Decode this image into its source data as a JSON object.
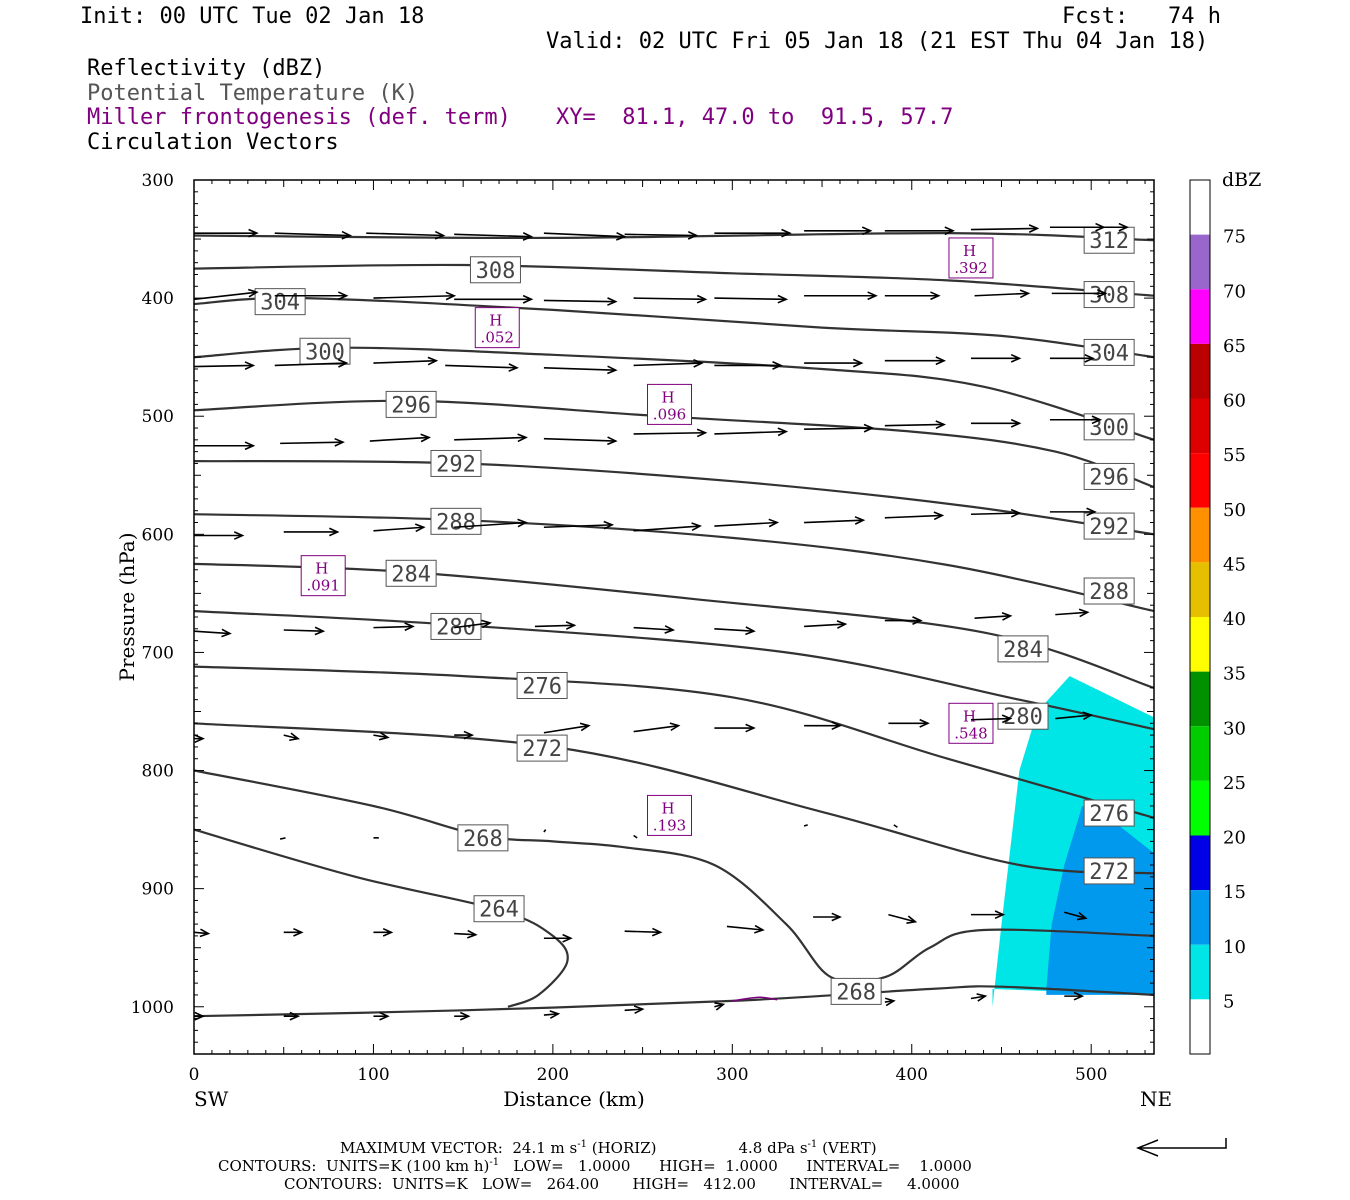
{
  "header": {
    "init": "Init: 00 UTC Tue 02 Jan 18",
    "fcst": "Fcst:   74 h",
    "valid": "Valid: 02 UTC Fri 05 Jan 18 (21 EST Thu 04 Jan 18)",
    "field1": "Reflectivity (dBZ)",
    "field2": "Potential Temperature (K)",
    "field3": "Miller frontogenesis (def. term)",
    "xy": "XY=  81.1, 47.0 to  91.5, 57.7",
    "field4": "Circulation Vectors"
  },
  "colors": {
    "theta": "#333333",
    "fronto": "#800080",
    "refl_5": "#00e6e6",
    "refl_10": "#0099ee"
  },
  "chart_data": {
    "type": "cross-section",
    "xlabel": "Distance (km)",
    "ylabel": "Pressure (hPa)",
    "xlim": [
      0,
      535
    ],
    "ylim": [
      1040,
      300
    ],
    "xticks": [
      0,
      100,
      200,
      300,
      400,
      500
    ],
    "yticks": [
      300,
      400,
      500,
      600,
      700,
      800,
      900,
      1000
    ],
    "x_end_labels": {
      "left": "SW",
      "right": "NE"
    },
    "theta_contours": [
      {
        "label": "312",
        "points": [
          [
            0,
            347
          ],
          [
            200,
            349
          ],
          [
            420,
            345
          ],
          [
            535,
            351
          ]
        ],
        "labels_at": [
          [
            510,
            351
          ]
        ]
      },
      {
        "label": "308",
        "points": [
          [
            0,
            375
          ],
          [
            150,
            372
          ],
          [
            300,
            379
          ],
          [
            420,
            385
          ],
          [
            535,
            398
          ]
        ],
        "labels_at": [
          [
            168,
            376
          ],
          [
            510,
            397
          ]
        ]
      },
      {
        "label": "304",
        "points": [
          [
            0,
            405
          ],
          [
            60,
            400
          ],
          [
            200,
            410
          ],
          [
            350,
            425
          ],
          [
            450,
            432
          ],
          [
            535,
            450
          ]
        ],
        "labels_at": [
          [
            48,
            403
          ],
          [
            510,
            446
          ]
        ]
      },
      {
        "label": "300",
        "points": [
          [
            0,
            450
          ],
          [
            80,
            442
          ],
          [
            200,
            448
          ],
          [
            350,
            460
          ],
          [
            440,
            475
          ],
          [
            535,
            520
          ]
        ],
        "labels_at": [
          [
            73,
            445
          ],
          [
            510,
            509
          ]
        ]
      },
      {
        "label": "296",
        "points": [
          [
            0,
            495
          ],
          [
            120,
            487
          ],
          [
            260,
            500
          ],
          [
            400,
            513
          ],
          [
            480,
            530
          ],
          [
            535,
            560
          ]
        ],
        "labels_at": [
          [
            121,
            490
          ],
          [
            510,
            551
          ]
        ]
      },
      {
        "label": "292",
        "points": [
          [
            0,
            538
          ],
          [
            150,
            540
          ],
          [
            300,
            555
          ],
          [
            430,
            576
          ],
          [
            535,
            600
          ]
        ],
        "labels_at": [
          [
            146,
            540
          ],
          [
            510,
            593
          ]
        ]
      },
      {
        "label": "288",
        "points": [
          [
            0,
            583
          ],
          [
            150,
            588
          ],
          [
            300,
            603
          ],
          [
            420,
            626
          ],
          [
            535,
            665
          ]
        ],
        "labels_at": [
          [
            146,
            589
          ],
          [
            510,
            648
          ]
        ]
      },
      {
        "label": "284",
        "points": [
          [
            0,
            625
          ],
          [
            120,
            632
          ],
          [
            280,
            655
          ],
          [
            440,
            683
          ],
          [
            535,
            730
          ]
        ],
        "labels_at": [
          [
            121,
            633
          ],
          [
            462,
            697
          ]
        ]
      },
      {
        "label": "280",
        "points": [
          [
            0,
            665
          ],
          [
            150,
            677
          ],
          [
            330,
            700
          ],
          [
            460,
            740
          ],
          [
            535,
            765
          ]
        ],
        "labels_at": [
          [
            146,
            678
          ],
          [
            462,
            754
          ]
        ]
      },
      {
        "label": "276",
        "points": [
          [
            0,
            712
          ],
          [
            150,
            720
          ],
          [
            300,
            738
          ],
          [
            420,
            790
          ],
          [
            535,
            840
          ]
        ],
        "labels_at": [
          [
            194,
            728
          ],
          [
            510,
            836
          ]
        ]
      },
      {
        "label": "272",
        "points": [
          [
            0,
            760
          ],
          [
            200,
            780
          ],
          [
            350,
            835
          ],
          [
            460,
            880
          ],
          [
            535,
            887
          ]
        ],
        "labels_at": [
          [
            194,
            781
          ],
          [
            510,
            885
          ]
        ]
      },
      {
        "label": "268",
        "points": [
          [
            0,
            800
          ],
          [
            100,
            830
          ],
          [
            160,
            855
          ],
          [
            200,
            860
          ],
          [
            240,
            865
          ],
          [
            290,
            880
          ],
          [
            330,
            930
          ],
          [
            355,
            975
          ],
          [
            385,
            975
          ],
          [
            410,
            950
          ],
          [
            440,
            935
          ],
          [
            535,
            940
          ]
        ],
        "labels_at": [
          [
            161,
            857
          ],
          [
            369,
            987
          ]
        ]
      },
      {
        "label": "264",
        "points": [
          [
            0,
            850
          ],
          [
            90,
            890
          ],
          [
            170,
            918
          ],
          [
            200,
            940
          ],
          [
            208,
            962
          ],
          [
            192,
            990
          ],
          [
            175,
            1000
          ]
        ],
        "labels_at": [
          [
            170,
            917
          ]
        ]
      },
      {
        "label": "",
        "points": [
          [
            0,
            1008
          ],
          [
            150,
            1003
          ],
          [
            300,
            995
          ],
          [
            410,
            985
          ],
          [
            450,
            983
          ],
          [
            535,
            990
          ]
        ],
        "labels_at": []
      }
    ],
    "fronto_maxima": [
      {
        "label": "H",
        "value": ".392",
        "x": 433,
        "p": 366
      },
      {
        "label": "H",
        "value": ".052",
        "x": 169,
        "p": 425
      },
      {
        "label": "H",
        "value": ".096",
        "x": 265,
        "p": 490
      },
      {
        "label": "H",
        "value": ".091",
        "x": 72,
        "p": 635
      },
      {
        "label": "H",
        "value": ".548",
        "x": 433,
        "p": 760
      },
      {
        "label": "H",
        "value": ".193",
        "x": 265,
        "p": 838
      }
    ],
    "reflectivity_regions": [
      {
        "dbz": 5,
        "points": [
          [
            445,
            1000
          ],
          [
            450,
            930
          ],
          [
            460,
            800
          ],
          [
            470,
            750
          ],
          [
            488,
            720
          ],
          [
            535,
            755
          ],
          [
            535,
            990
          ],
          [
            445,
            985
          ]
        ]
      },
      {
        "dbz": 10,
        "points": [
          [
            475,
            985
          ],
          [
            478,
            930
          ],
          [
            485,
            880
          ],
          [
            495,
            830
          ],
          [
            510,
            840
          ],
          [
            535,
            870
          ],
          [
            535,
            990
          ],
          [
            475,
            990
          ]
        ]
      }
    ],
    "colorbar": {
      "title": "dBZ",
      "levels": [
        5,
        10,
        15,
        20,
        25,
        30,
        35,
        40,
        45,
        50,
        55,
        60,
        65,
        70,
        75
      ],
      "colors": [
        "#ffffff",
        "#00e6e6",
        "#0099ee",
        "#0000e6",
        "#00ff00",
        "#00cc00",
        "#009000",
        "#ffff00",
        "#e6c000",
        "#ff9000",
        "#ff0000",
        "#dd0000",
        "#bb0000",
        "#ff00ff",
        "#9966cc",
        "#ffffff"
      ]
    },
    "vectors": [
      [
        0,
        345,
        35,
        345
      ],
      [
        45,
        345,
        42,
        347
      ],
      [
        96,
        345,
        43,
        347
      ],
      [
        145,
        346,
        43,
        348
      ],
      [
        195,
        345,
        45,
        348
      ],
      [
        240,
        346,
        40,
        347
      ],
      [
        290,
        345,
        42,
        345
      ],
      [
        340,
        343,
        37,
        343
      ],
      [
        385,
        343,
        38,
        343
      ],
      [
        433,
        342,
        37,
        341
      ],
      [
        477,
        340,
        30,
        340
      ],
      [
        505,
        340,
        15,
        340
      ],
      [
        0,
        401,
        35,
        395
      ],
      [
        45,
        398,
        40,
        398
      ],
      [
        100,
        400,
        45,
        398
      ],
      [
        145,
        401,
        43,
        401
      ],
      [
        195,
        402,
        40,
        403
      ],
      [
        245,
        400,
        40,
        401
      ],
      [
        290,
        400,
        40,
        401
      ],
      [
        340,
        398,
        40,
        398
      ],
      [
        385,
        398,
        30,
        398
      ],
      [
        435,
        398,
        30,
        396
      ],
      [
        478,
        396,
        30,
        396
      ],
      [
        0,
        458,
        33,
        457
      ],
      [
        45,
        457,
        40,
        455
      ],
      [
        100,
        455,
        35,
        453
      ],
      [
        140,
        457,
        40,
        459
      ],
      [
        195,
        459,
        40,
        461
      ],
      [
        245,
        457,
        38,
        455
      ],
      [
        290,
        457,
        37,
        457
      ],
      [
        340,
        455,
        32,
        455
      ],
      [
        385,
        453,
        33,
        453
      ],
      [
        433,
        451,
        27,
        451
      ],
      [
        477,
        451,
        24,
        451
      ],
      [
        0,
        525,
        33,
        525
      ],
      [
        48,
        523,
        35,
        522
      ],
      [
        98,
        521,
        33,
        518
      ],
      [
        145,
        520,
        40,
        518
      ],
      [
        195,
        519,
        40,
        521
      ],
      [
        245,
        515,
        40,
        514
      ],
      [
        290,
        515,
        40,
        513
      ],
      [
        340,
        511,
        38,
        510
      ],
      [
        385,
        508,
        33,
        507
      ],
      [
        433,
        506,
        27,
        506
      ],
      [
        477,
        503,
        28,
        503
      ],
      [
        0,
        601,
        27,
        601
      ],
      [
        50,
        598,
        30,
        598
      ],
      [
        100,
        597,
        28,
        594
      ],
      [
        145,
        594,
        40,
        590
      ],
      [
        195,
        594,
        38,
        592
      ],
      [
        245,
        597,
        37,
        593
      ],
      [
        290,
        593,
        35,
        590
      ],
      [
        340,
        590,
        33,
        588
      ],
      [
        385,
        586,
        32,
        584
      ],
      [
        433,
        583,
        27,
        582
      ],
      [
        477,
        581,
        25,
        581
      ],
      [
        0,
        682,
        20,
        684
      ],
      [
        50,
        681,
        22,
        682
      ],
      [
        100,
        679,
        22,
        678
      ],
      [
        145,
        679,
        20,
        675
      ],
      [
        190,
        678,
        22,
        677
      ],
      [
        245,
        679,
        22,
        681
      ],
      [
        290,
        680,
        22,
        682
      ],
      [
        340,
        678,
        23,
        676
      ],
      [
        385,
        673,
        20,
        673
      ],
      [
        435,
        671,
        20,
        669
      ],
      [
        480,
        668,
        18,
        666
      ],
      [
        0,
        773,
        5,
        773
      ],
      [
        50,
        770,
        8,
        773
      ],
      [
        100,
        770,
        8,
        772
      ],
      [
        145,
        770,
        10,
        770
      ],
      [
        195,
        768,
        25,
        762
      ],
      [
        245,
        767,
        25,
        762
      ],
      [
        290,
        764,
        22,
        764
      ],
      [
        340,
        762,
        20,
        762
      ],
      [
        387,
        760,
        22,
        760
      ],
      [
        433,
        757,
        22,
        756
      ],
      [
        480,
        756,
        20,
        753
      ],
      [
        48,
        858,
        3,
        857
      ],
      [
        100,
        857,
        3,
        857
      ],
      [
        195,
        852,
        1,
        850
      ],
      [
        245,
        855,
        2,
        857
      ],
      [
        340,
        847,
        2,
        846
      ],
      [
        390,
        846,
        2,
        848
      ],
      [
        0,
        937,
        8,
        938
      ],
      [
        50,
        937,
        10,
        937
      ],
      [
        100,
        937,
        10,
        937
      ],
      [
        145,
        938,
        12,
        939
      ],
      [
        195,
        942,
        15,
        942
      ],
      [
        240,
        936,
        20,
        937
      ],
      [
        297,
        932,
        20,
        935
      ],
      [
        345,
        924,
        15,
        924
      ],
      [
        387,
        922,
        15,
        928
      ],
      [
        433,
        922,
        18,
        922
      ],
      [
        485,
        920,
        12,
        925
      ],
      [
        0,
        1008,
        5,
        1008
      ],
      [
        50,
        1008,
        8,
        1008
      ],
      [
        100,
        1008,
        8,
        1008
      ],
      [
        145,
        1008,
        8,
        1008
      ],
      [
        195,
        1007,
        8,
        1006
      ],
      [
        240,
        1003,
        10,
        1002
      ],
      [
        290,
        1000,
        5,
        998
      ],
      [
        385,
        996,
        5,
        995
      ],
      [
        433,
        993,
        8,
        991
      ],
      [
        485,
        991,
        10,
        991
      ]
    ],
    "fronto_contour": [
      [
        300,
        995
      ],
      [
        315,
        992
      ],
      [
        325,
        994
      ]
    ]
  },
  "footer": {
    "line1a": "MAXIMUM VECTOR:  24.1 m s",
    "line1b": " (HORIZ)",
    "line1c": "4.8 dPa s",
    "line1d": " (VERT)",
    "line2": "CONTOURS:  UNITS=K (100 km h)",
    "line2b": "   LOW=   1.0000      HIGH=  1.0000      INTERVAL=    1.0000",
    "line3": "CONTOURS:  UNITS=K   LOW=   264.00       HIGH=   412.00       INTERVAL=     4.0000",
    "sup": "-1"
  }
}
